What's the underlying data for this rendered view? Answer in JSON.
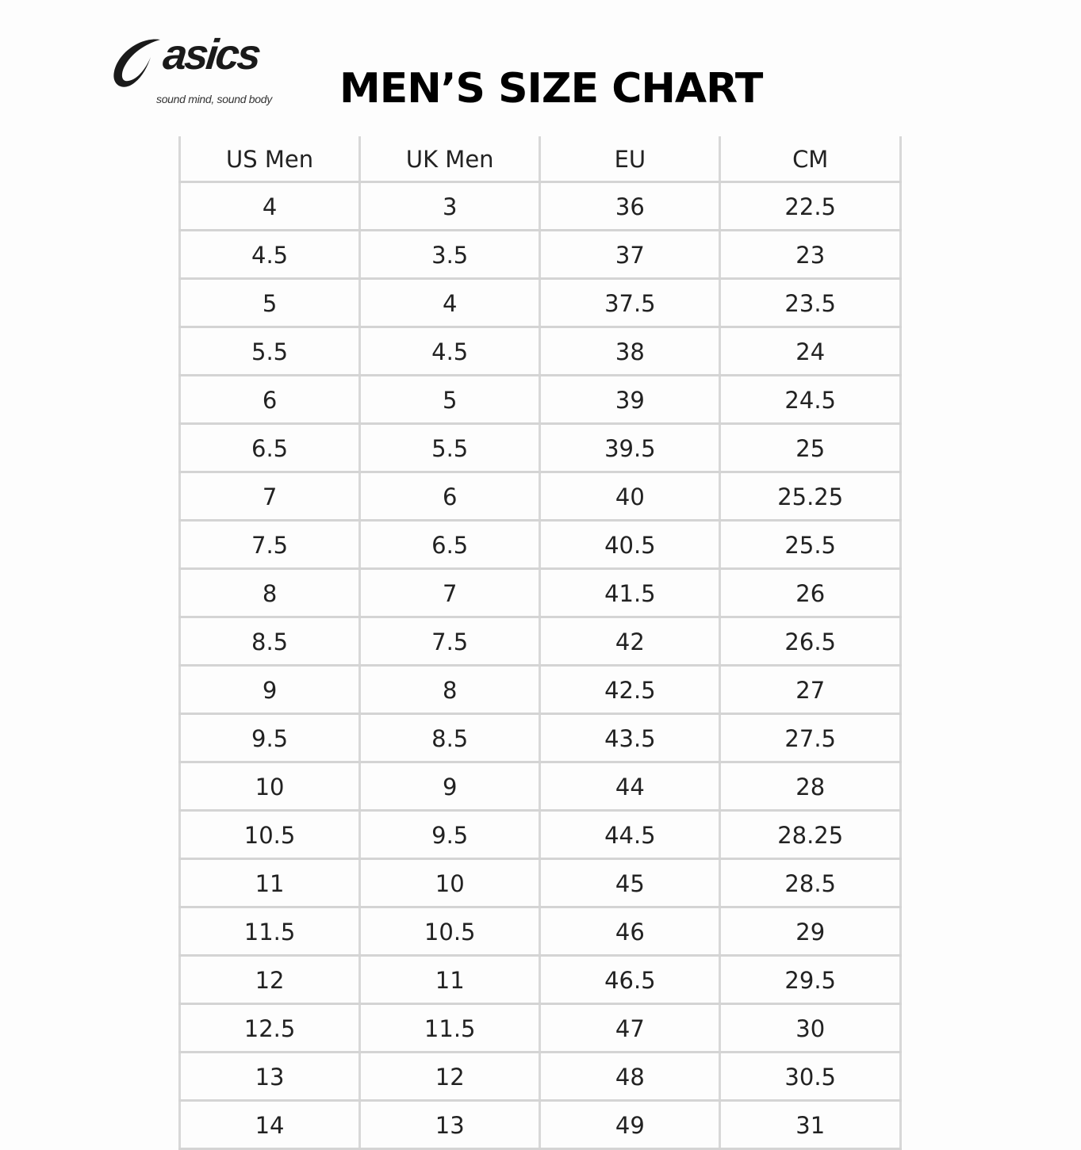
{
  "logo": {
    "brand": "asics",
    "tagline": "sound mind, sound body"
  },
  "title": "MEN’S SIZE CHART",
  "table": {
    "headers": [
      "US Men",
      "UK Men",
      "EU",
      "CM"
    ],
    "rows": [
      [
        "4",
        "3",
        "36",
        "22.5"
      ],
      [
        "4.5",
        "3.5",
        "37",
        "23"
      ],
      [
        "5",
        "4",
        "37.5",
        "23.5"
      ],
      [
        "5.5",
        "4.5",
        "38",
        "24"
      ],
      [
        "6",
        "5",
        "39",
        "24.5"
      ],
      [
        "6.5",
        "5.5",
        "39.5",
        "25"
      ],
      [
        "7",
        "6",
        "40",
        "25.25"
      ],
      [
        "7.5",
        "6.5",
        "40.5",
        "25.5"
      ],
      [
        "8",
        "7",
        "41.5",
        "26"
      ],
      [
        "8.5",
        "7.5",
        "42",
        "26.5"
      ],
      [
        "9",
        "8",
        "42.5",
        "27"
      ],
      [
        "9.5",
        "8.5",
        "43.5",
        "27.5"
      ],
      [
        "10",
        "9",
        "44",
        "28"
      ],
      [
        "10.5",
        "9.5",
        "44.5",
        "28.25"
      ],
      [
        "11",
        "10",
        "45",
        "28.5"
      ],
      [
        "11.5",
        "10.5",
        "46",
        "29"
      ],
      [
        "12",
        "11",
        "46.5",
        "29.5"
      ],
      [
        "12.5",
        "11.5",
        "47",
        "30"
      ],
      [
        "13",
        "12",
        "48",
        "30.5"
      ],
      [
        "14",
        "13",
        "49",
        "31"
      ]
    ]
  }
}
